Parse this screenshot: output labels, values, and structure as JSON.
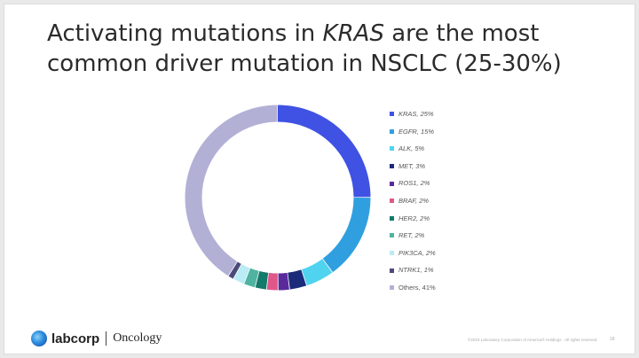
{
  "slide": {
    "title_pre": "Activating mutations in ",
    "title_em": "KRAS",
    "title_post": " are the most common driver mutation in NSCLC (25-30%)",
    "footer": "©2023 Laboratory Corporation of America® Holdings · All rights reserved.",
    "page_number": "18"
  },
  "branding": {
    "logo_text": "labcorp",
    "unit": "Oncology"
  },
  "chart_data": {
    "type": "pie",
    "donut": true,
    "legend_position": "right",
    "slices": [
      {
        "label": "KRAS, 25%",
        "value": 25,
        "color": "#3f52e3"
      },
      {
        "label": "EGFR, 15%",
        "value": 15,
        "color": "#2f9fe0"
      },
      {
        "label": "ALK, 5%",
        "value": 5,
        "color": "#4fd3ef"
      },
      {
        "label": "MET, 3%",
        "value": 3,
        "color": "#1b2b7a"
      },
      {
        "label": "ROS1, 2%",
        "value": 2,
        "color": "#5a2a9c"
      },
      {
        "label": "BRAF, 2%",
        "value": 2,
        "color": "#e0588a"
      },
      {
        "label": "HER2, 2%",
        "value": 2,
        "color": "#147a6a"
      },
      {
        "label": "RET, 2%",
        "value": 2,
        "color": "#4fb3a0"
      },
      {
        "label": "PIK3CA, 2%",
        "value": 2,
        "color": "#b9ecf4"
      },
      {
        "label": "NTRK1, 1%",
        "value": 1,
        "color": "#4c4a7a"
      },
      {
        "label": "Others, 41%",
        "value": 41,
        "color": "#b3b0d6"
      }
    ]
  }
}
